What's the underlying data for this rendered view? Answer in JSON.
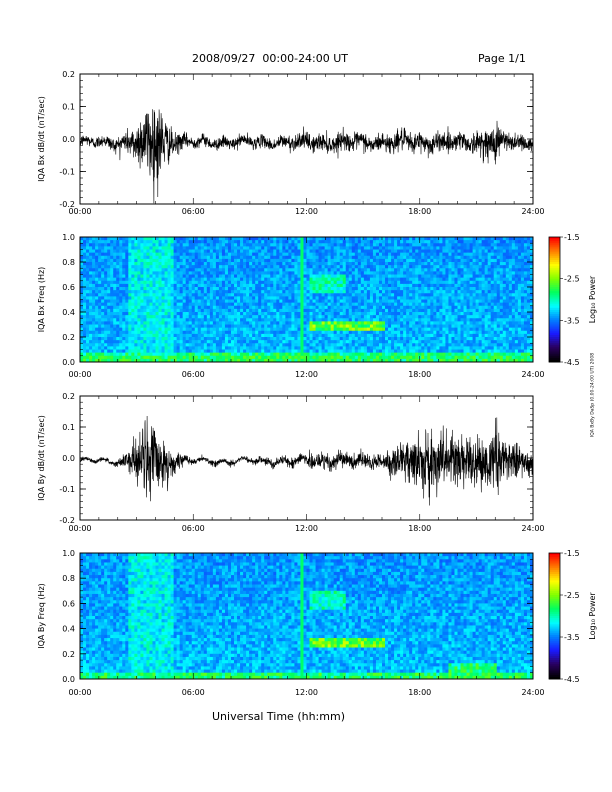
{
  "header": {
    "title": "2008/09/27  00:00-24:00 UT",
    "page": "Page 1/1"
  },
  "footer": {
    "xlabel": "Universal Time (hh:mm)",
    "side_stamp": "IQA BxBy DaSp (0.00-24:00 UT) 2008"
  },
  "chart_data": [
    {
      "type": "line",
      "panel": "bx-timeseries",
      "ylabel": "IQA Bx dB/dt (nT/sec)",
      "xlim": [
        0,
        24
      ],
      "ylim": [
        -0.2,
        0.2
      ],
      "x_ticks": [
        "00:00",
        "06:00",
        "12:00",
        "18:00",
        "24:00"
      ],
      "y_ticks": [
        "0.2",
        "0.1",
        "0.0",
        "-0.1",
        "-0.2"
      ],
      "y_tick_values": [
        0.2,
        0.1,
        0.0,
        -0.1,
        -0.2
      ],
      "baseline": -0.01,
      "amplitude_envelope": {
        "hours": [
          0,
          1,
          2,
          2.5,
          3.0,
          3.3,
          3.7,
          4.0,
          4.3,
          4.6,
          5.0,
          5.5,
          6,
          7,
          8,
          9,
          10,
          11,
          12,
          13,
          14,
          15,
          16,
          17,
          18,
          19,
          20,
          21,
          21.5,
          22,
          22.5,
          23,
          24
        ],
        "amplitude": [
          0.02,
          0.02,
          0.025,
          0.04,
          0.07,
          0.1,
          0.14,
          0.17,
          0.12,
          0.07,
          0.04,
          0.025,
          0.02,
          0.02,
          0.02,
          0.02,
          0.02,
          0.025,
          0.03,
          0.03,
          0.03,
          0.03,
          0.03,
          0.035,
          0.035,
          0.035,
          0.03,
          0.035,
          0.05,
          0.07,
          0.04,
          0.03,
          0.025
        ]
      },
      "color": "#000000"
    },
    {
      "type": "heatmap",
      "panel": "bx-spectrogram",
      "ylabel": "IQA Bx Freq (Hz)",
      "colorbar_label": "Log₁₀ Power",
      "xlim": [
        0,
        24
      ],
      "ylim": [
        0.0,
        1.0
      ],
      "x_ticks": [
        "00:00",
        "06:00",
        "12:00",
        "18:00",
        "24:00"
      ],
      "y_ticks": [
        "1.0",
        "0.8",
        "0.6",
        "0.4",
        "0.2",
        "0.0"
      ],
      "y_tick_values": [
        1.0,
        0.8,
        0.6,
        0.4,
        0.2,
        0.0
      ],
      "colorbar_range": [
        -4.5,
        -1.5
      ],
      "colorbar_ticks": [
        "-1.5",
        "-2.5",
        "-3.5",
        "-4.5"
      ],
      "colorbar_tick_values": [
        -1.5,
        -2.5,
        -3.5,
        -4.5
      ],
      "colormap": [
        "#000000",
        "#2a0060",
        "#1a1aff",
        "#0080ff",
        "#00ffff",
        "#00ff60",
        "#80ff00",
        "#ffff00",
        "#ff8000",
        "#ff0000"
      ],
      "features": [
        {
          "hours": [
            12.2,
            16.2
          ],
          "freq": [
            0.25,
            0.32
          ],
          "level": 0.65
        },
        {
          "hours": [
            12.2,
            14.0
          ],
          "freq": [
            0.55,
            0.7
          ],
          "level": 0.5
        },
        {
          "hours": [
            2.5,
            5.0
          ],
          "freq": [
            0.0,
            1.0
          ],
          "level": 0.45
        },
        {
          "hours": [
            0,
            24
          ],
          "freq": [
            0.0,
            0.08
          ],
          "level": 0.55
        }
      ]
    },
    {
      "type": "line",
      "panel": "by-timeseries",
      "ylabel": "IQA By dB/dt (nT/sec)",
      "xlim": [
        0,
        24
      ],
      "ylim": [
        -0.2,
        0.2
      ],
      "x_ticks": [
        "00:00",
        "06:00",
        "12:00",
        "18:00",
        "24:00"
      ],
      "y_ticks": [
        "0.2",
        "0.1",
        "0.0",
        "-0.1",
        "-0.2"
      ],
      "y_tick_values": [
        0.2,
        0.1,
        0.0,
        -0.1,
        -0.2
      ],
      "baseline": -0.01,
      "amplitude_envelope": {
        "hours": [
          0,
          1,
          2,
          2.5,
          2.8,
          3.3,
          3.7,
          4.0,
          4.5,
          5.0,
          5.5,
          6,
          7,
          8,
          9,
          10,
          11,
          12,
          13,
          14,
          15,
          16,
          17,
          18,
          19,
          20,
          21,
          21.5,
          22,
          22.5,
          23,
          24
        ],
        "amplitude": [
          0.008,
          0.008,
          0.01,
          0.03,
          0.08,
          0.12,
          0.14,
          0.12,
          0.08,
          0.04,
          0.015,
          0.01,
          0.01,
          0.01,
          0.01,
          0.015,
          0.02,
          0.025,
          0.03,
          0.03,
          0.025,
          0.03,
          0.06,
          0.09,
          0.1,
          0.09,
          0.08,
          0.09,
          0.12,
          0.08,
          0.06,
          0.04
        ]
      },
      "color": "#000000"
    },
    {
      "type": "heatmap",
      "panel": "by-spectrogram",
      "ylabel": "IQA By Freq (Hz)",
      "colorbar_label": "Log₁₀ Power",
      "xlim": [
        0,
        24
      ],
      "ylim": [
        0.0,
        1.0
      ],
      "x_ticks": [
        "00:00",
        "06:00",
        "12:00",
        "18:00",
        "24:00"
      ],
      "y_ticks": [
        "1.0",
        "0.8",
        "0.6",
        "0.4",
        "0.2",
        "0.0"
      ],
      "y_tick_values": [
        1.0,
        0.8,
        0.6,
        0.4,
        0.2,
        0.0
      ],
      "colorbar_range": [
        -4.5,
        -1.5
      ],
      "colorbar_ticks": [
        "-1.5",
        "-2.5",
        "-3.5",
        "-4.5"
      ],
      "colorbar_tick_values": [
        -1.5,
        -2.5,
        -3.5,
        -4.5
      ],
      "colormap": [
        "#000000",
        "#2a0060",
        "#1a1aff",
        "#0080ff",
        "#00ffff",
        "#00ff60",
        "#80ff00",
        "#ffff00",
        "#ff8000",
        "#ff0000"
      ],
      "features": [
        {
          "hours": [
            12.2,
            16.2
          ],
          "freq": [
            0.25,
            0.32
          ],
          "level": 0.65
        },
        {
          "hours": [
            12.2,
            14.0
          ],
          "freq": [
            0.55,
            0.7
          ],
          "level": 0.5
        },
        {
          "hours": [
            2.5,
            5.0
          ],
          "freq": [
            0.0,
            1.0
          ],
          "level": 0.45
        },
        {
          "hours": [
            19.5,
            22
          ],
          "freq": [
            0.0,
            0.12
          ],
          "level": 0.55
        }
      ]
    }
  ]
}
